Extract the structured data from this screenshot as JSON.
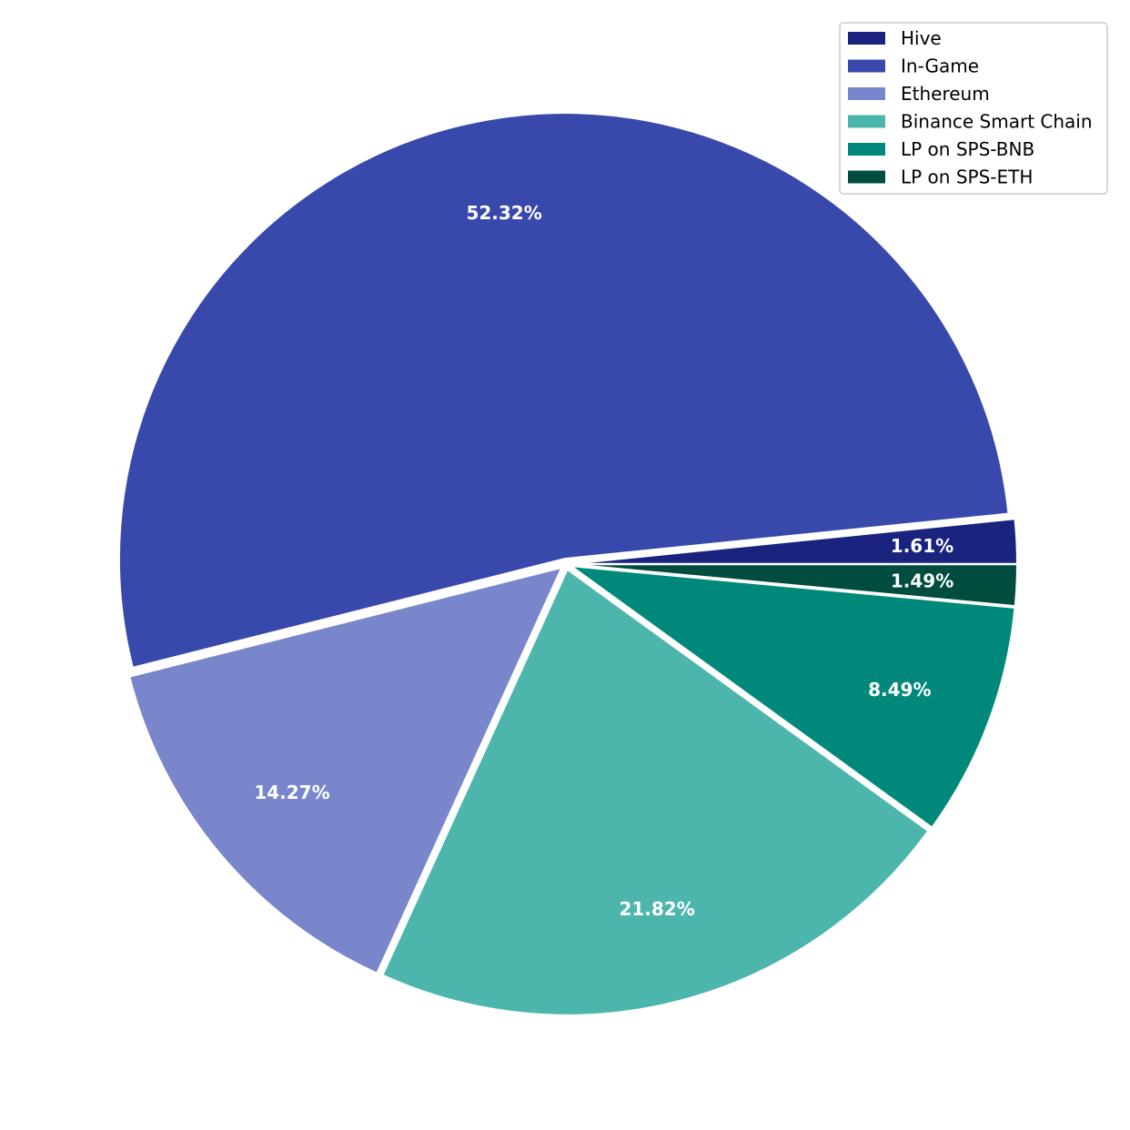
{
  "chart_data": {
    "type": "pie",
    "title": "",
    "legend_position": "top-right",
    "slices": [
      {
        "name": "Hive",
        "value": 1.61,
        "label": "1.61%",
        "color": "#1a237e"
      },
      {
        "name": "In-Game",
        "value": 52.32,
        "label": "52.32%",
        "color": "#3949ab"
      },
      {
        "name": "Ethereum",
        "value": 14.27,
        "label": "14.27%",
        "color": "#7986cb"
      },
      {
        "name": "Binance Smart Chain",
        "value": 21.82,
        "label": "21.82%",
        "color": "#4db6ac"
      },
      {
        "name": "LP on SPS-BNB",
        "value": 8.49,
        "label": "8.49%",
        "color": "#00897b"
      },
      {
        "name": "LP on SPS-ETH",
        "value": 1.49,
        "label": "1.49%",
        "color": "#004d40"
      }
    ]
  }
}
